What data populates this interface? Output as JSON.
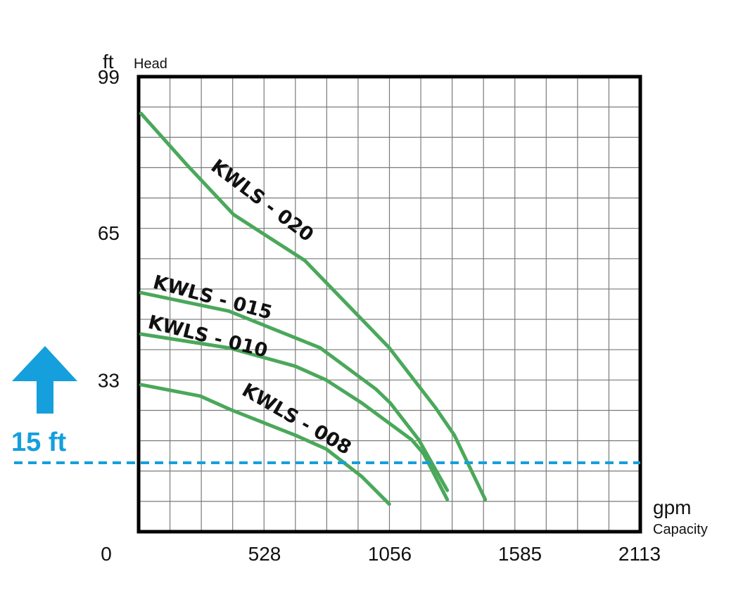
{
  "chart_data": {
    "type": "line",
    "xlabel": "Capacity",
    "xunit": "gpm",
    "ylabel": "Head",
    "yunit": "ft",
    "xlim": [
      0,
      2113
    ],
    "ylim": [
      0,
      99
    ],
    "x_ticks": [
      "0",
      "528",
      "1056",
      "1585",
      "2113"
    ],
    "y_ticks": [
      "99",
      "65",
      "33"
    ],
    "grid": true,
    "series": [
      {
        "name": "KWLS - 020",
        "label_rotation": 37,
        "points": [
          [
            10,
            91
          ],
          [
            200,
            80
          ],
          [
            400,
            69
          ],
          [
            700,
            59
          ],
          [
            1000,
            43
          ],
          [
            1056,
            40
          ],
          [
            1250,
            27
          ],
          [
            1330,
            21
          ],
          [
            1460,
            7
          ]
        ]
      },
      {
        "name": "KWLS - 015",
        "label_rotation": 15,
        "points": [
          [
            10,
            52
          ],
          [
            380,
            48
          ],
          [
            765,
            40
          ],
          [
            1000,
            31
          ],
          [
            1060,
            28
          ],
          [
            1180,
            20
          ],
          [
            1300,
            9
          ]
        ]
      },
      {
        "name": "KWLS - 010",
        "label_rotation": 14,
        "points": [
          [
            10,
            43
          ],
          [
            380,
            40
          ],
          [
            660,
            36
          ],
          [
            790,
            33
          ],
          [
            940,
            28
          ],
          [
            1150,
            20
          ],
          [
            1200,
            17
          ],
          [
            1300,
            7
          ]
        ]
      },
      {
        "name": "KWLS - 008",
        "label_rotation": 30,
        "points": [
          [
            10,
            32
          ],
          [
            260,
            29.5
          ],
          [
            390,
            26.5
          ],
          [
            660,
            21
          ],
          [
            790,
            18
          ],
          [
            940,
            12
          ],
          [
            1056,
            6
          ]
        ]
      }
    ],
    "reference_line": {
      "label": "15 ft",
      "y": 15,
      "color": "#159fdc"
    },
    "curve_color": "#4aa85a"
  }
}
